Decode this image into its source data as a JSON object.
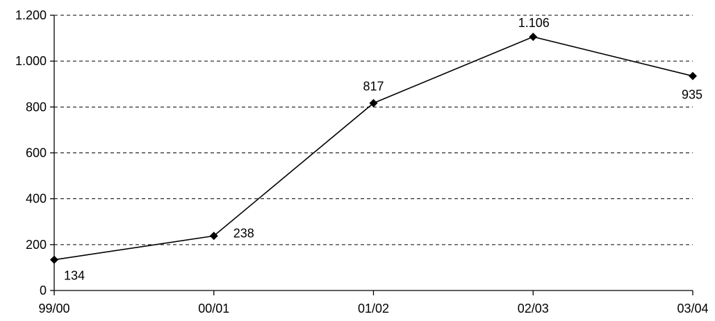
{
  "chart_data": {
    "type": "line",
    "title": "",
    "xlabel": "",
    "ylabel": "",
    "categories": [
      "99/00",
      "00/01",
      "01/02",
      "02/03",
      "03/04"
    ],
    "series": [
      {
        "values": [
          134,
          238,
          817,
          1106,
          935
        ],
        "labels": [
          "134",
          "238",
          "817",
          "1.106",
          "935"
        ],
        "color": "#000000",
        "marker": "diamond"
      }
    ],
    "y_ticks": [
      0,
      200,
      400,
      600,
      800,
      1000,
      1200
    ],
    "y_tick_labels": [
      "0",
      "200",
      "400",
      "600",
      "800",
      "1.000",
      "1.200"
    ],
    "ylim": [
      0,
      1200
    ],
    "grid": true,
    "grid_style": "dashed",
    "legend": false
  }
}
